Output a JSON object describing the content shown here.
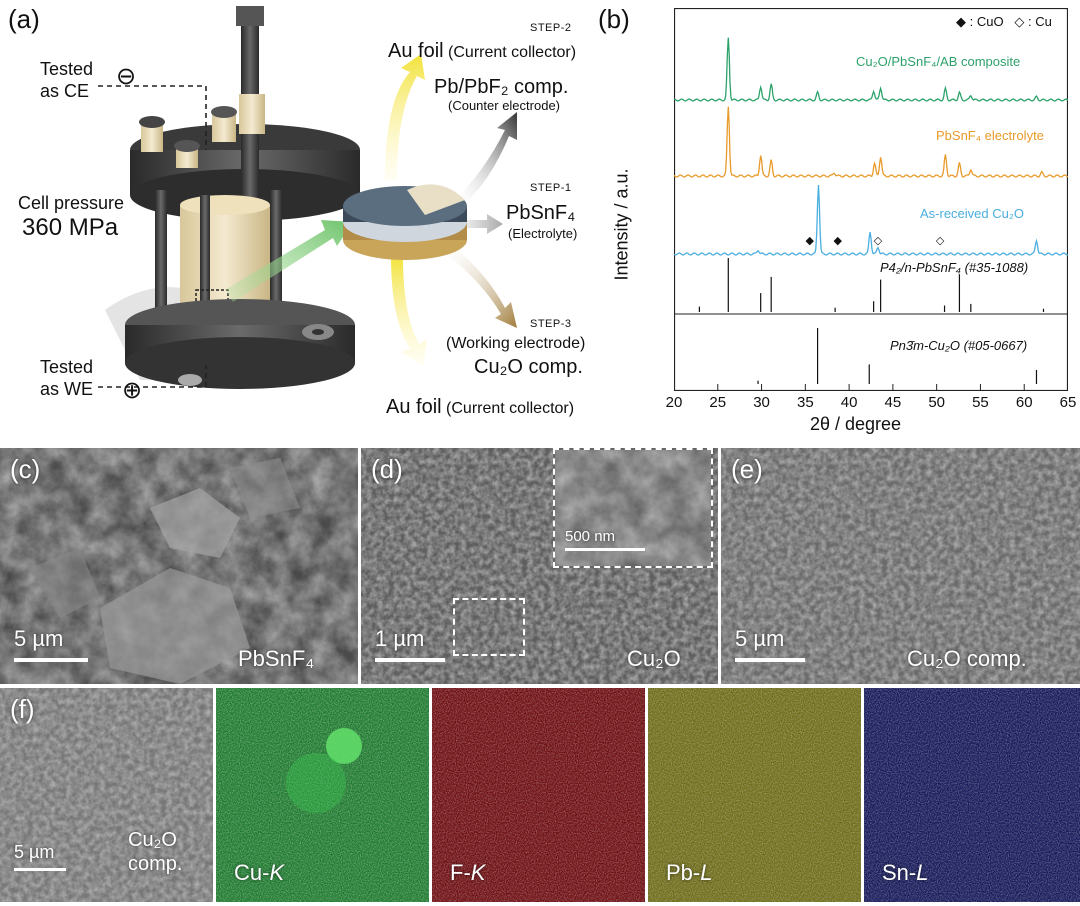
{
  "panel_a": {
    "label": "(a)",
    "tested_ce": [
      "Tested",
      "as CE"
    ],
    "tested_we": [
      "Tested",
      "as WE"
    ],
    "ce_sign": "⊖",
    "we_sign": "⊕",
    "cell_pressure": "Cell pressure",
    "pressure_value": "360 MPa",
    "step2": "STEP-2",
    "au_top": "Au foil",
    "au_top_note": "(Current collector)",
    "pb_comp": "Pb/PbF₂ comp.",
    "pb_note": "(Counter electrode)",
    "step1": "STEP-1",
    "electrolyte": "PbSnF₄",
    "electrolyte_note": "(Electrolyte)",
    "step3": "STEP-3",
    "we_note": "(Working electrode)",
    "cu2o_comp": "Cu₂O comp.",
    "au_bottom": "Au foil",
    "au_bottom_note": "(Current collector)"
  },
  "panel_b": {
    "label": "(b)",
    "legend_cuo": "◆ : CuO",
    "legend_cu": "◇ : Cu",
    "ylabel": "Intensity / a.u.",
    "xlabel": "2θ / degree",
    "xticks": [
      "20",
      "25",
      "30",
      "35",
      "40",
      "45",
      "50",
      "55",
      "60",
      "65"
    ],
    "series_labels": [
      "Cu₂O/PbSnF₄/AB composite",
      "PbSnF₄ electrolyte",
      "As-received Cu₂O"
    ],
    "ref1": "P4₂/n-PbSnF₄ (#35-1088)",
    "ref2": "Pn3̄m-Cu₂O (#05-0667)"
  },
  "chart_data": {
    "type": "line",
    "xlabel": "2θ / degree",
    "ylabel": "Intensity / a.u.",
    "xlim": [
      20,
      65
    ],
    "series": [
      {
        "name": "Cu₂O/PbSnF₄/AB composite",
        "color": "#2ca26a",
        "peaks": [
          [
            26.2,
            1.0
          ],
          [
            29.9,
            0.22
          ],
          [
            31.1,
            0.25
          ],
          [
            36.4,
            0.12
          ],
          [
            42.8,
            0.15
          ],
          [
            43.6,
            0.2
          ],
          [
            51.0,
            0.18
          ],
          [
            52.6,
            0.12
          ],
          [
            53.9,
            0.08
          ],
          [
            61.4,
            0.05
          ]
        ]
      },
      {
        "name": "PbSnF₄ electrolyte",
        "color": "#e89a2a",
        "peaks": [
          [
            26.2,
            1.0
          ],
          [
            29.9,
            0.3
          ],
          [
            31.1,
            0.22
          ],
          [
            38.3,
            0.05
          ],
          [
            42.9,
            0.18
          ],
          [
            43.6,
            0.28
          ],
          [
            51.0,
            0.3
          ],
          [
            52.6,
            0.18
          ],
          [
            53.9,
            0.1
          ],
          [
            62.0,
            0.05
          ]
        ]
      },
      {
        "name": "As-received Cu₂O",
        "color": "#4aaee0",
        "peaks": [
          [
            29.6,
            0.06
          ],
          [
            36.5,
            1.0
          ],
          [
            42.4,
            0.32
          ],
          [
            43.3,
            0.1
          ],
          [
            61.4,
            0.2
          ]
        ]
      }
    ],
    "markers": [
      {
        "symbol": "◆",
        "label": "CuO",
        "x": [
          35.5,
          38.7
        ]
      },
      {
        "symbol": "◇",
        "label": "Cu",
        "x": [
          43.3,
          50.4
        ]
      }
    ],
    "reference_sticks": [
      {
        "name": "P4₂/n-PbSnF₄ (#35-1088)",
        "sticks": [
          [
            22.9,
            0.1
          ],
          [
            26.2,
            1.0
          ],
          [
            29.9,
            0.35
          ],
          [
            31.1,
            0.65
          ],
          [
            38.4,
            0.08
          ],
          [
            42.8,
            0.2
          ],
          [
            43.6,
            0.6
          ],
          [
            50.9,
            0.12
          ],
          [
            52.6,
            0.7
          ],
          [
            53.9,
            0.15
          ],
          [
            62.2,
            0.06
          ]
        ]
      },
      {
        "name": "Pn3̄m-Cu₂O (#05-0667)",
        "sticks": [
          [
            29.6,
            0.06
          ],
          [
            36.4,
            1.0
          ],
          [
            42.3,
            0.35
          ],
          [
            61.4,
            0.25
          ]
        ]
      }
    ]
  },
  "sem": {
    "c": {
      "label": "(c)",
      "scale": "5 µm",
      "name": "PbSnF₄"
    },
    "d": {
      "label": "(d)",
      "scale": "1 µm",
      "name": "Cu₂O",
      "inset_scale": "500 nm"
    },
    "e": {
      "label": "(e)",
      "scale": "5 µm",
      "name": "Cu₂O comp."
    }
  },
  "eds": {
    "label": "(f)",
    "scale": "5 µm",
    "sem_name": [
      "Cu₂O",
      "comp."
    ],
    "maps": [
      {
        "name": "Cu-",
        "element": "K",
        "color": "#2fb04a"
      },
      {
        "name": "F-",
        "element": "K",
        "color": "#c8242a"
      },
      {
        "name": "Pb-",
        "element": "L",
        "color": "#b5b22a"
      },
      {
        "name": "Sn-",
        "element": "L",
        "color": "#2a2e8a"
      }
    ]
  }
}
